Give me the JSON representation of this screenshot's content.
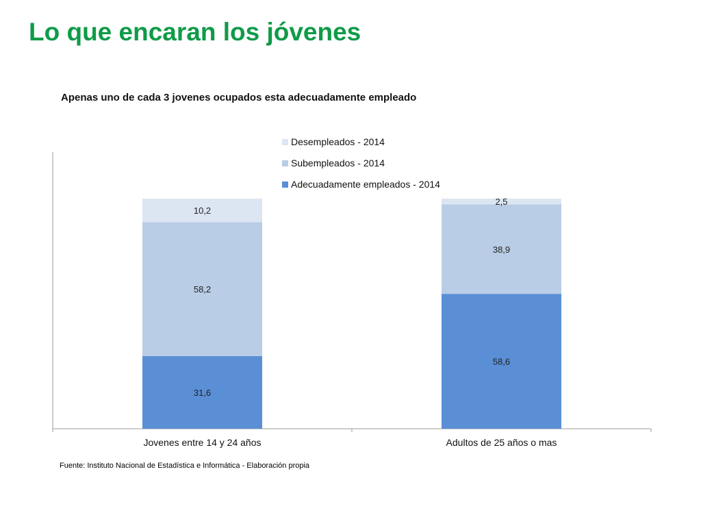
{
  "slide": {
    "title": "Lo que encaran los jóvenes"
  },
  "chart_data": {
    "type": "bar",
    "stacked": true,
    "title": "Apenas uno de cada 3 jovenes ocupados esta adecuadamente empleado",
    "categories": [
      "Jovenes entre 14 y 24 años",
      "Adultos de 25  años o mas"
    ],
    "series": [
      {
        "name": "Adecuadamente empleados - 2014",
        "values": [
          31.6,
          58.6
        ],
        "labels": [
          "31,6",
          "58,6"
        ],
        "color": "#5a8fd6"
      },
      {
        "name": "Subempleados - 2014",
        "values": [
          58.2,
          38.9
        ],
        "labels": [
          "58,2",
          "38,9"
        ],
        "color": "#b9cde6"
      },
      {
        "name": "Desempleados - 2014",
        "values": [
          10.2,
          2.5
        ],
        "labels": [
          "10,2",
          "2,5"
        ],
        "color": "#dce6f2"
      }
    ],
    "legend_order": [
      "Desempleados - 2014",
      "Subempleados - 2014",
      "Adecuadamente empleados - 2014"
    ],
    "legend_position": "top",
    "ylim": [
      0,
      100
    ],
    "grid": false,
    "xlabel": "",
    "ylabel": ""
  },
  "footer": {
    "source": "Fuente: Instituto Nacional de Estadística e Informática - Elaboración propia"
  }
}
